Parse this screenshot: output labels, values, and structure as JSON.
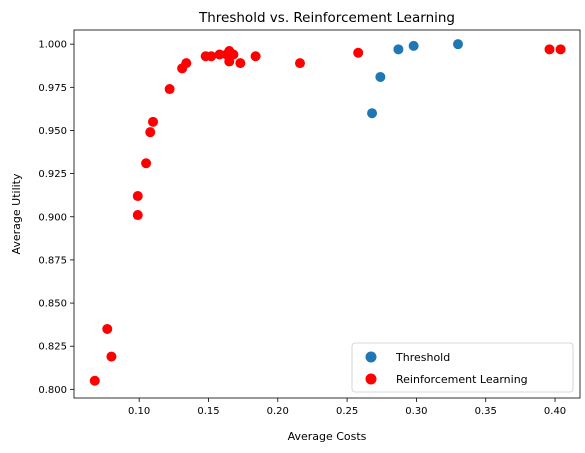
{
  "chart_data": {
    "type": "scatter",
    "title": "Threshold vs. Reinforcement Learning",
    "xlabel": "Average Costs",
    "ylabel": "Average Utility",
    "xlim": [
      0.053,
      0.418
    ],
    "ylim": [
      0.795,
      1.0082
    ],
    "xticks": [
      0.1,
      0.15,
      0.2,
      0.25,
      0.3,
      0.35,
      0.4
    ],
    "xtick_labels": [
      "0.10",
      "0.15",
      "0.20",
      "0.25",
      "0.30",
      "0.35",
      "0.40"
    ],
    "yticks": [
      0.8,
      0.825,
      0.85,
      0.875,
      0.9,
      0.925,
      0.95,
      0.975,
      1.0
    ],
    "ytick_labels": [
      "0.800",
      "0.825",
      "0.850",
      "0.875",
      "0.900",
      "0.925",
      "0.950",
      "0.975",
      "1.000"
    ],
    "grid": false,
    "legend_position": "lower-right",
    "series": [
      {
        "name": "Threshold",
        "color": "#1f77b4",
        "points": [
          {
            "x": 0.268,
            "y": 0.96
          },
          {
            "x": 0.274,
            "y": 0.981
          },
          {
            "x": 0.287,
            "y": 0.997
          },
          {
            "x": 0.298,
            "y": 0.999
          },
          {
            "x": 0.33,
            "y": 1.0
          }
        ]
      },
      {
        "name": "Reinforcement Learning",
        "color": "#ff0000",
        "points": [
          {
            "x": 0.068,
            "y": 0.805
          },
          {
            "x": 0.077,
            "y": 0.835
          },
          {
            "x": 0.08,
            "y": 0.819
          },
          {
            "x": 0.099,
            "y": 0.901
          },
          {
            "x": 0.099,
            "y": 0.912
          },
          {
            "x": 0.105,
            "y": 0.931
          },
          {
            "x": 0.108,
            "y": 0.949
          },
          {
            "x": 0.11,
            "y": 0.955
          },
          {
            "x": 0.122,
            "y": 0.974
          },
          {
            "x": 0.131,
            "y": 0.986
          },
          {
            "x": 0.134,
            "y": 0.989
          },
          {
            "x": 0.148,
            "y": 0.993
          },
          {
            "x": 0.152,
            "y": 0.993
          },
          {
            "x": 0.158,
            "y": 0.994
          },
          {
            "x": 0.163,
            "y": 0.994
          },
          {
            "x": 0.165,
            "y": 0.996
          },
          {
            "x": 0.168,
            "y": 0.994
          },
          {
            "x": 0.165,
            "y": 0.99
          },
          {
            "x": 0.173,
            "y": 0.989
          },
          {
            "x": 0.184,
            "y": 0.993
          },
          {
            "x": 0.216,
            "y": 0.989
          },
          {
            "x": 0.258,
            "y": 0.995
          },
          {
            "x": 0.396,
            "y": 0.997
          },
          {
            "x": 0.404,
            "y": 0.997
          }
        ]
      }
    ]
  }
}
